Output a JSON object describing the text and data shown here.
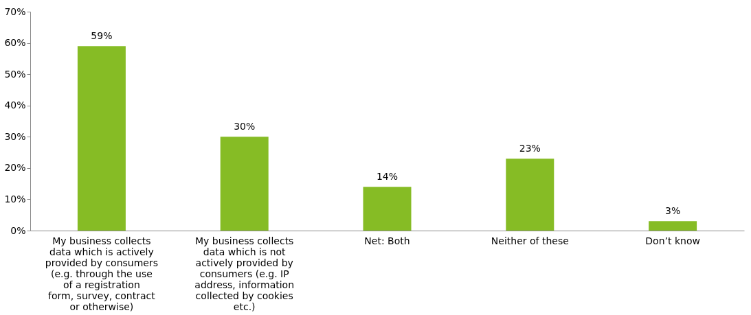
{
  "chart_data": {
    "type": "bar",
    "categories": [
      "My business collects data which is actively provided by consumers (e.g. through the use of a registration form, survey, contract or otherwise)",
      "My business collects data which is not actively provided by consumers (e.g. IP address, information collected by cookies etc.)",
      "Net: Both",
      "Neither of these",
      "Don’t know"
    ],
    "values": [
      59,
      30,
      14,
      23,
      3
    ],
    "color": "#86bc25",
    "ylim": [
      0,
      70
    ],
    "yticks": [
      {
        "value": 0,
        "label": "0%"
      },
      {
        "value": 10,
        "label": "10%"
      },
      {
        "value": 20,
        "label": "20%"
      },
      {
        "value": 30,
        "label": "30%"
      },
      {
        "value": 40,
        "label": "40%"
      },
      {
        "value": 50,
        "label": "50%"
      },
      {
        "value": 60,
        "label": "60%"
      },
      {
        "value": 70,
        "label": "70%"
      }
    ],
    "value_labels": [
      "59%",
      "30%",
      "14%",
      "23%",
      "3%"
    ],
    "grid": false
  }
}
